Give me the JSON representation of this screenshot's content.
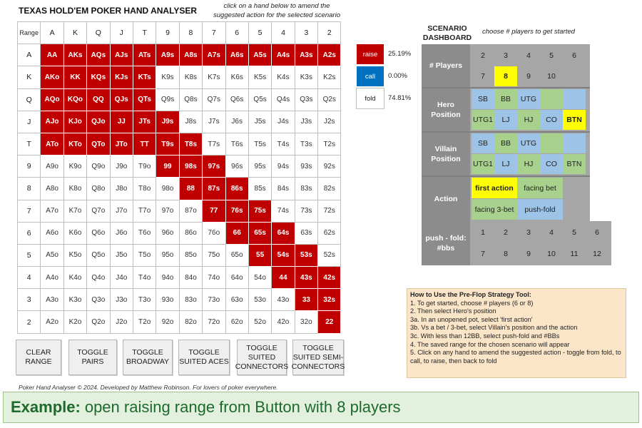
{
  "title": "TEXAS HOLD'EM POKER HAND ANALYSER",
  "instruction_lines": [
    "click on a hand below to amend the",
    "suggested action for the selected scenario"
  ],
  "grid": {
    "corner": "Range",
    "cols": [
      "A",
      "K",
      "Q",
      "J",
      "T",
      "9",
      "8",
      "7",
      "6",
      "5",
      "4",
      "3",
      "2"
    ],
    "rows": [
      {
        "label": "A",
        "cells": [
          [
            "AA",
            "raise"
          ],
          [
            "AKs",
            "raise"
          ],
          [
            "AQs",
            "raise"
          ],
          [
            "AJs",
            "raise"
          ],
          [
            "ATs",
            "raise"
          ],
          [
            "A9s",
            "raise"
          ],
          [
            "A8s",
            "raise"
          ],
          [
            "A7s",
            "raise"
          ],
          [
            "A6s",
            "raise"
          ],
          [
            "A5s",
            "raise"
          ],
          [
            "A4s",
            "raise"
          ],
          [
            "A3s",
            "raise"
          ],
          [
            "A2s",
            "raise"
          ]
        ]
      },
      {
        "label": "K",
        "cells": [
          [
            "AKo",
            "raise"
          ],
          [
            "KK",
            "raise"
          ],
          [
            "KQs",
            "raise"
          ],
          [
            "KJs",
            "raise"
          ],
          [
            "KTs",
            "raise"
          ],
          [
            "K9s",
            "fold"
          ],
          [
            "K8s",
            "fold"
          ],
          [
            "K7s",
            "fold"
          ],
          [
            "K6s",
            "fold"
          ],
          [
            "K5s",
            "fold"
          ],
          [
            "K4s",
            "fold"
          ],
          [
            "K3s",
            "fold"
          ],
          [
            "K2s",
            "fold"
          ]
        ]
      },
      {
        "label": "Q",
        "cells": [
          [
            "AQo",
            "raise"
          ],
          [
            "KQo",
            "raise"
          ],
          [
            "QQ",
            "raise"
          ],
          [
            "QJs",
            "raise"
          ],
          [
            "QTs",
            "raise"
          ],
          [
            "Q9s",
            "fold"
          ],
          [
            "Q8s",
            "fold"
          ],
          [
            "Q7s",
            "fold"
          ],
          [
            "Q6s",
            "fold"
          ],
          [
            "Q5s",
            "fold"
          ],
          [
            "Q4s",
            "fold"
          ],
          [
            "Q3s",
            "fold"
          ],
          [
            "Q2s",
            "fold"
          ]
        ]
      },
      {
        "label": "J",
        "cells": [
          [
            "AJo",
            "raise"
          ],
          [
            "KJo",
            "raise"
          ],
          [
            "QJo",
            "raise"
          ],
          [
            "JJ",
            "raise"
          ],
          [
            "JTs",
            "raise"
          ],
          [
            "J9s",
            "raise"
          ],
          [
            "J8s",
            "fold"
          ],
          [
            "J7s",
            "fold"
          ],
          [
            "J6s",
            "fold"
          ],
          [
            "J5s",
            "fold"
          ],
          [
            "J4s",
            "fold"
          ],
          [
            "J3s",
            "fold"
          ],
          [
            "J2s",
            "fold"
          ]
        ]
      },
      {
        "label": "T",
        "cells": [
          [
            "ATo",
            "raise"
          ],
          [
            "KTo",
            "raise"
          ],
          [
            "QTo",
            "raise"
          ],
          [
            "JTo",
            "raise"
          ],
          [
            "TT",
            "raise"
          ],
          [
            "T9s",
            "raise"
          ],
          [
            "T8s",
            "raise"
          ],
          [
            "T7s",
            "fold"
          ],
          [
            "T6s",
            "fold"
          ],
          [
            "T5s",
            "fold"
          ],
          [
            "T4s",
            "fold"
          ],
          [
            "T3s",
            "fold"
          ],
          [
            "T2s",
            "fold"
          ]
        ]
      },
      {
        "label": "9",
        "cells": [
          [
            "A9o",
            "fold"
          ],
          [
            "K9o",
            "fold"
          ],
          [
            "Q9o",
            "fold"
          ],
          [
            "J9o",
            "fold"
          ],
          [
            "T9o",
            "fold"
          ],
          [
            "99",
            "raise"
          ],
          [
            "98s",
            "raise"
          ],
          [
            "97s",
            "raise"
          ],
          [
            "96s",
            "fold"
          ],
          [
            "95s",
            "fold"
          ],
          [
            "94s",
            "fold"
          ],
          [
            "93s",
            "fold"
          ],
          [
            "92s",
            "fold"
          ]
        ]
      },
      {
        "label": "8",
        "cells": [
          [
            "A8o",
            "fold"
          ],
          [
            "K8o",
            "fold"
          ],
          [
            "Q8o",
            "fold"
          ],
          [
            "J8o",
            "fold"
          ],
          [
            "T8o",
            "fold"
          ],
          [
            "98o",
            "fold"
          ],
          [
            "88",
            "raise"
          ],
          [
            "87s",
            "raise"
          ],
          [
            "86s",
            "raise"
          ],
          [
            "85s",
            "fold"
          ],
          [
            "84s",
            "fold"
          ],
          [
            "83s",
            "fold"
          ],
          [
            "82s",
            "fold"
          ]
        ]
      },
      {
        "label": "7",
        "cells": [
          [
            "A7o",
            "fold"
          ],
          [
            "K7o",
            "fold"
          ],
          [
            "Q7o",
            "fold"
          ],
          [
            "J7o",
            "fold"
          ],
          [
            "T7o",
            "fold"
          ],
          [
            "97o",
            "fold"
          ],
          [
            "87o",
            "fold"
          ],
          [
            "77",
            "raise"
          ],
          [
            "76s",
            "raise"
          ],
          [
            "75s",
            "raise"
          ],
          [
            "74s",
            "fold"
          ],
          [
            "73s",
            "fold"
          ],
          [
            "72s",
            "fold"
          ]
        ]
      },
      {
        "label": "6",
        "cells": [
          [
            "A6o",
            "fold"
          ],
          [
            "K6o",
            "fold"
          ],
          [
            "Q6o",
            "fold"
          ],
          [
            "J6o",
            "fold"
          ],
          [
            "T6o",
            "fold"
          ],
          [
            "96o",
            "fold"
          ],
          [
            "86o",
            "fold"
          ],
          [
            "76o",
            "fold"
          ],
          [
            "66",
            "raise"
          ],
          [
            "65s",
            "raise"
          ],
          [
            "64s",
            "raise"
          ],
          [
            "63s",
            "fold"
          ],
          [
            "62s",
            "fold"
          ]
        ]
      },
      {
        "label": "5",
        "cells": [
          [
            "A5o",
            "fold"
          ],
          [
            "K5o",
            "fold"
          ],
          [
            "Q5o",
            "fold"
          ],
          [
            "J5o",
            "fold"
          ],
          [
            "T5o",
            "fold"
          ],
          [
            "95o",
            "fold"
          ],
          [
            "85o",
            "fold"
          ],
          [
            "75o",
            "fold"
          ],
          [
            "65o",
            "fold"
          ],
          [
            "55",
            "raise"
          ],
          [
            "54s",
            "raise"
          ],
          [
            "53s",
            "raise"
          ],
          [
            "52s",
            "fold"
          ]
        ]
      },
      {
        "label": "4",
        "cells": [
          [
            "A4o",
            "fold"
          ],
          [
            "K4o",
            "fold"
          ],
          [
            "Q4o",
            "fold"
          ],
          [
            "J4o",
            "fold"
          ],
          [
            "T4o",
            "fold"
          ],
          [
            "94o",
            "fold"
          ],
          [
            "84o",
            "fold"
          ],
          [
            "74o",
            "fold"
          ],
          [
            "64o",
            "fold"
          ],
          [
            "54o",
            "fold"
          ],
          [
            "44",
            "raise"
          ],
          [
            "43s",
            "raise"
          ],
          [
            "42s",
            "raise"
          ]
        ]
      },
      {
        "label": "3",
        "cells": [
          [
            "A3o",
            "fold"
          ],
          [
            "K3o",
            "fold"
          ],
          [
            "Q3o",
            "fold"
          ],
          [
            "J3o",
            "fold"
          ],
          [
            "T3o",
            "fold"
          ],
          [
            "93o",
            "fold"
          ],
          [
            "83o",
            "fold"
          ],
          [
            "73o",
            "fold"
          ],
          [
            "63o",
            "fold"
          ],
          [
            "53o",
            "fold"
          ],
          [
            "43o",
            "fold"
          ],
          [
            "33",
            "raise"
          ],
          [
            "32s",
            "raise"
          ]
        ]
      },
      {
        "label": "2",
        "cells": [
          [
            "A2o",
            "fold"
          ],
          [
            "K2o",
            "fold"
          ],
          [
            "Q2o",
            "fold"
          ],
          [
            "J2o",
            "fold"
          ],
          [
            "T2o",
            "fold"
          ],
          [
            "92o",
            "fold"
          ],
          [
            "82o",
            "fold"
          ],
          [
            "72o",
            "fold"
          ],
          [
            "62o",
            "fold"
          ],
          [
            "52o",
            "fold"
          ],
          [
            "42o",
            "fold"
          ],
          [
            "32o",
            "fold"
          ],
          [
            "22",
            "raise"
          ]
        ]
      }
    ]
  },
  "legend": [
    {
      "label": "raise",
      "pct": "25.19%",
      "color": "#c00000"
    },
    {
      "label": "call",
      "pct": "0.00%",
      "color": "#0070c0"
    },
    {
      "label": "fold",
      "pct": "74.81%",
      "color": "#ffffff"
    }
  ],
  "buttons": [
    {
      "name": "clear-range-button",
      "label": "CLEAR\nRANGE"
    },
    {
      "name": "toggle-pairs-button",
      "label": "TOGGLE\nPAIRS"
    },
    {
      "name": "toggle-broadway-button",
      "label": "TOGGLE\nBROADWAY"
    },
    {
      "name": "toggle-suited-aces-button",
      "label": "TOGGLE\nSUITED ACES"
    },
    {
      "name": "toggle-suited-connectors-button",
      "label": "TOGGLE\nSUITED\nCONNECTORS"
    },
    {
      "name": "toggle-suited-semi-connectors-button",
      "label": "TOGGLE\nSUITED SEMI-\nCONNECTORS"
    }
  ],
  "footer_note": "Poker Hand Analyser © 2024. Developed by Matthew Robinson. For lovers of poker everywhere.",
  "example": {
    "bold": "Example:",
    "text": "open raising range from Button with 8 players"
  },
  "dashboard": {
    "title": "SCENARIO\nDASHBOARD",
    "hint": "choose # players to get started",
    "players": {
      "label": "# Players",
      "row1": [
        "2",
        "3",
        "4",
        "5",
        "6"
      ],
      "row2": [
        "7",
        "8",
        "9",
        "10"
      ],
      "selected": "8"
    },
    "hero": {
      "label": "Hero\nPosition",
      "row1": [
        "SB",
        "BB",
        "UTG"
      ],
      "row2": [
        "UTG1",
        "LJ",
        "HJ",
        "CO",
        "BTN"
      ],
      "selected": "BTN"
    },
    "villain": {
      "label": "Villain\nPosition",
      "row1": [
        "SB",
        "BB",
        "UTG"
      ],
      "row2": [
        "UTG1",
        "LJ",
        "HJ",
        "CO",
        "BTN"
      ]
    },
    "action": {
      "label": "Action",
      "options": [
        "first action",
        "facing bet",
        "facing 3-bet",
        "push-fold"
      ],
      "selected": "first action"
    },
    "pushfold": {
      "label": "push - fold:\n#bbs",
      "row1": [
        "1",
        "2",
        "3",
        "4",
        "5",
        "6"
      ],
      "row2": [
        "7",
        "8",
        "9",
        "10",
        "11",
        "12"
      ]
    }
  },
  "howto": {
    "title": "How to Use the Pre-Flop Strategy Tool:",
    "steps": [
      "1. To get started, choose # players (6 or 8)",
      "2. Then select Hero's position",
      "3a. In an unopened pot, select 'first action'",
      "3b. Vs a bet / 3-bet, select Villain's position and the action",
      "3c. With less than 12BB, select push-fold and #BBs",
      "4. The saved range for the chosen scenario will appear",
      "5. Click on any hand to amend the suggested action - toggle from fold, to call, to raise, then back to fold"
    ]
  },
  "colors": {
    "raise": "#c00000",
    "call": "#0070c0",
    "blue_cell": "#9dc3e6",
    "green_cell": "#a9d18e",
    "selected": "#ffff00"
  }
}
